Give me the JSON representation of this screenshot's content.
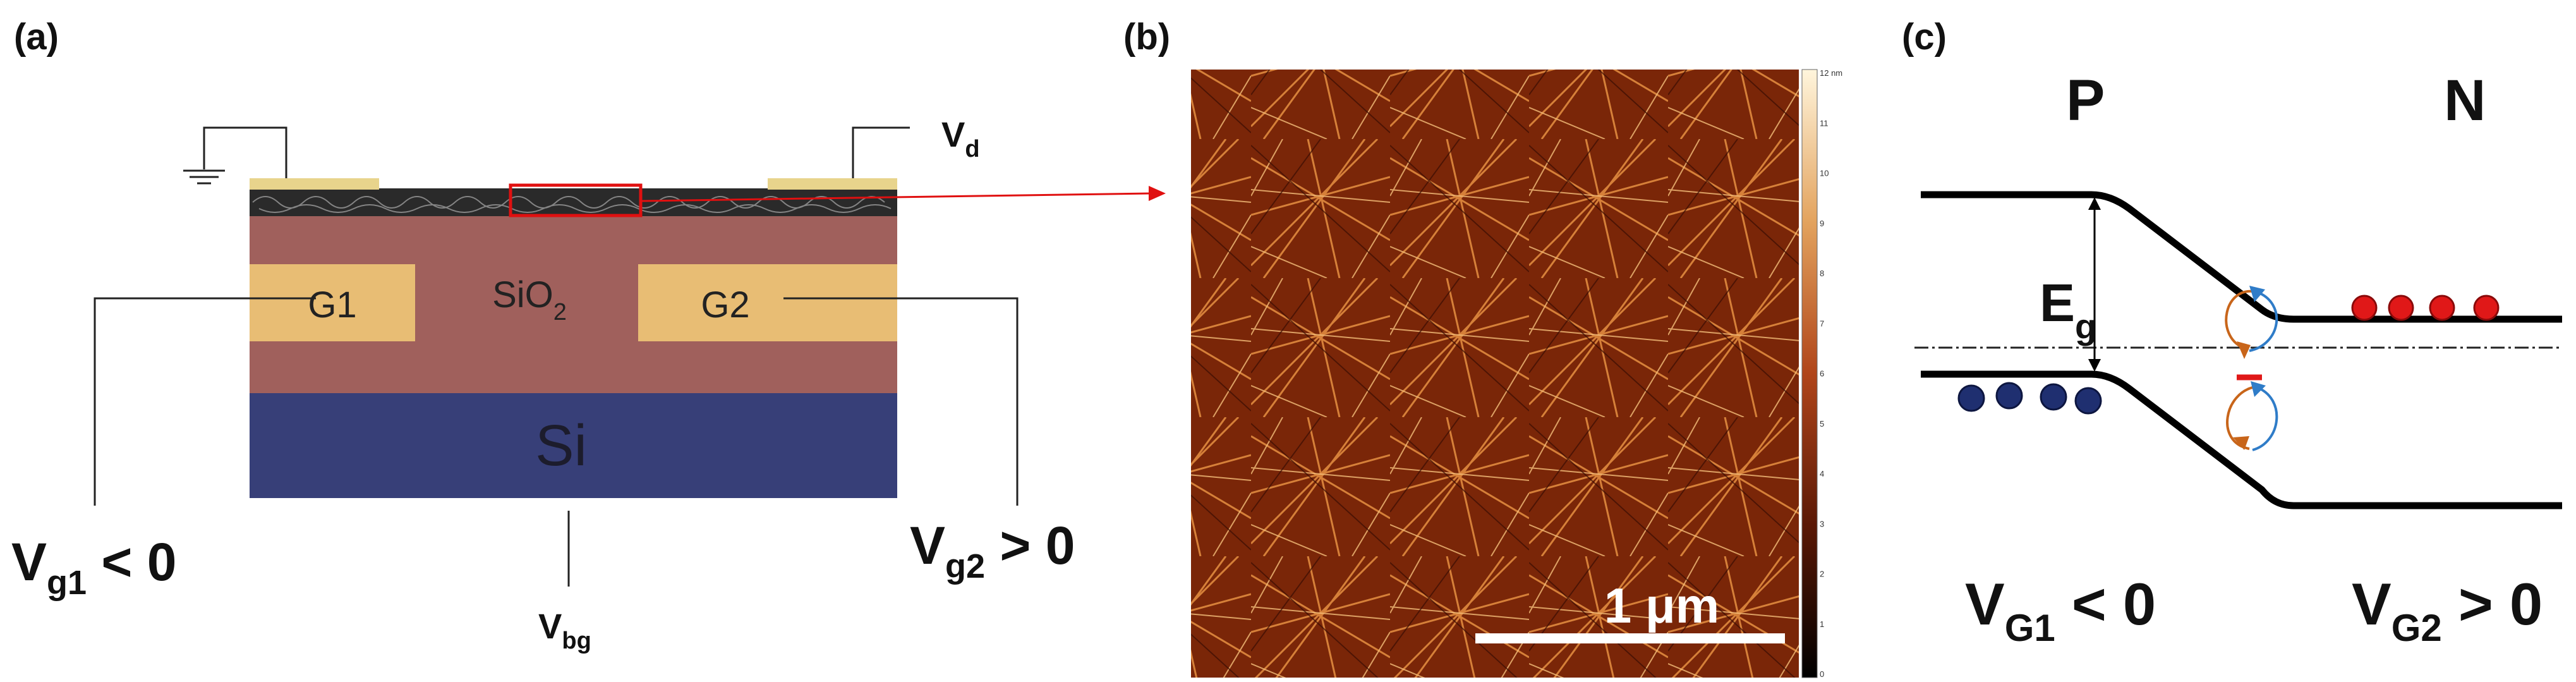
{
  "panel_a": {
    "label": "(a)",
    "gate1": "G1",
    "gate2": "G2",
    "oxide": "SiO",
    "oxide_sub": "2",
    "substrate": "Si",
    "drain": "V",
    "drain_sub": "d",
    "vbg": "V",
    "vbg_sub": "bg",
    "vg1": "V",
    "vg1_sub": "g1",
    "vg1_rel": " < 0",
    "vg2": "V",
    "vg2_sub": "g2",
    "vg2_rel": " > 0",
    "colors": {
      "oxide": "#a0605c",
      "gate": "#e8bd74",
      "substrate": "#373f78",
      "film": "#2a2a2a",
      "contact": "#e8d48c",
      "highlight": "#e01010"
    }
  },
  "panel_b": {
    "label": "(b)",
    "scalebar": "1 μm",
    "colorbar_ticks": [
      "12 nm",
      "11",
      "10",
      "9",
      "8",
      "7",
      "6",
      "5",
      "4",
      "3",
      "2",
      "1",
      "0"
    ]
  },
  "panel_c": {
    "label": "(c)",
    "p_label": "P",
    "n_label": "N",
    "eg": "E",
    "eg_sub": "g",
    "vG1": "V",
    "vG1_sub": "G1",
    "vG1_rel": " < 0",
    "vG2": "V",
    "vG2_sub": "G2",
    "vG2_rel": " > 0",
    "colors": {
      "electron": "#e01818",
      "hole": "#1f2f70",
      "arrow_orange": "#c8651a",
      "arrow_blue": "#2f7cc8"
    }
  }
}
